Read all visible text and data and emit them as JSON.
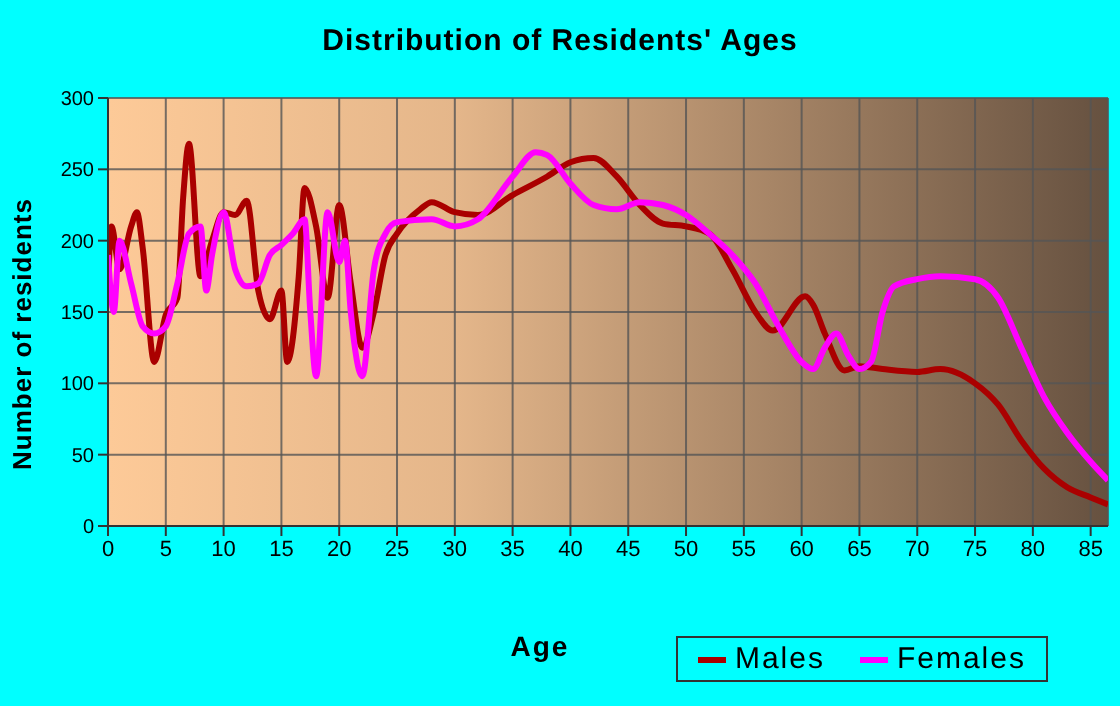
{
  "chart_data": {
    "type": "line",
    "title": "Distribution of Residents' Ages",
    "xlabel": "Age",
    "ylabel": "Number of residents",
    "xlim": [
      0,
      86.5
    ],
    "xticks": [
      0,
      5,
      10,
      15,
      20,
      25,
      30,
      35,
      40,
      45,
      50,
      55,
      60,
      65,
      70,
      75,
      80,
      85
    ],
    "ylim": [
      0,
      300
    ],
    "yticks": [
      0,
      50,
      100,
      150,
      200,
      250,
      300
    ],
    "grid": true,
    "legend": "bottom right",
    "marker": "none",
    "line_style": "solid",
    "series": [
      {
        "name": "Males",
        "color": "#aa0000",
        "x": [
          0,
          0.3,
          1,
          2,
          2.5,
          3,
          4,
          5,
          6,
          6.5,
          7,
          8,
          9,
          10,
          11,
          12,
          13,
          14,
          15,
          15.5,
          16.5,
          17,
          18,
          19,
          20,
          21,
          22,
          23,
          24,
          25,
          27,
          28,
          30,
          32,
          35,
          38,
          40,
          42,
          44,
          46,
          48,
          50,
          52,
          54,
          56,
          57.5,
          60.3,
          61,
          62,
          63.7,
          65,
          67,
          70,
          72,
          75,
          77,
          79,
          81,
          83,
          85,
          86.5
        ],
        "values": [
          165,
          210,
          180,
          210,
          220,
          195,
          115,
          148,
          160,
          230,
          268,
          175,
          200,
          220,
          218,
          228,
          165,
          145,
          165,
          115,
          175,
          237,
          210,
          160,
          225,
          170,
          125,
          150,
          190,
          205,
          222,
          227,
          220,
          218,
          232,
          245,
          255,
          258,
          245,
          225,
          212,
          210,
          205,
          180,
          150,
          137,
          161,
          155,
          135,
          109,
          112,
          110,
          108,
          110,
          100,
          85,
          60,
          40,
          27,
          20,
          15
        ]
      },
      {
        "name": "Females",
        "color": "#ff00ff",
        "x": [
          0,
          0.5,
          1,
          2,
          3,
          4,
          5,
          6,
          7,
          8,
          8.5,
          9,
          10,
          11,
          12,
          13,
          14,
          15,
          16,
          17,
          17.5,
          18,
          19,
          20,
          20.5,
          21,
          22,
          23,
          24,
          25,
          28,
          30,
          32,
          35,
          37,
          38,
          40,
          42,
          44,
          46,
          48,
          50,
          52,
          54,
          56,
          58,
          60,
          61,
          62,
          63,
          64,
          65,
          66,
          67,
          68,
          70,
          72,
          75,
          77,
          79,
          81,
          83,
          85,
          86.5
        ],
        "values": [
          190,
          150,
          200,
          170,
          140,
          135,
          140,
          170,
          205,
          210,
          165,
          190,
          220,
          180,
          168,
          170,
          190,
          197,
          205,
          215,
          150,
          105,
          220,
          185,
          200,
          150,
          105,
          180,
          205,
          213,
          215,
          210,
          215,
          245,
          262,
          260,
          240,
          225,
          222,
          227,
          225,
          218,
          205,
          190,
          170,
          140,
          115,
          110,
          125,
          135,
          120,
          110,
          115,
          150,
          168,
          173,
          175,
          173,
          160,
          125,
          90,
          65,
          45,
          32
        ]
      }
    ]
  }
}
